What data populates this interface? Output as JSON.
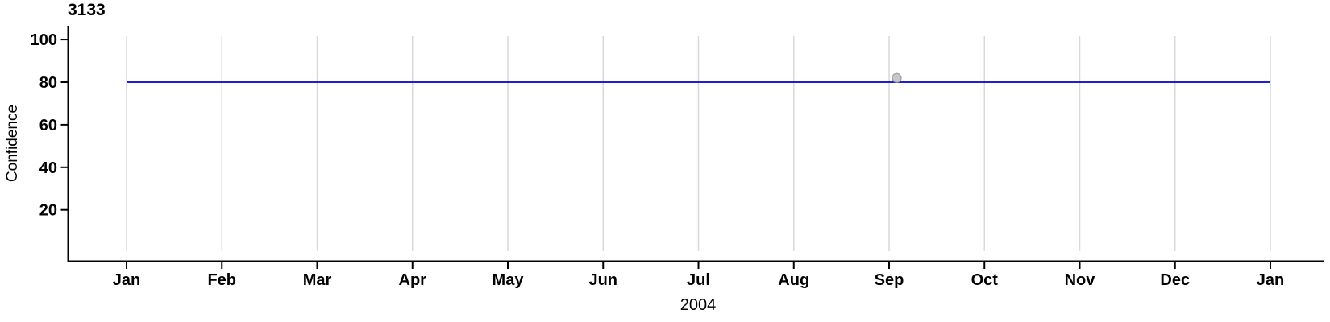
{
  "chart": {
    "title": "3133",
    "ylabel": "Confidence",
    "xlabel": "2004"
  },
  "chart_data": {
    "type": "line",
    "title": "3133",
    "xlabel": "2004",
    "ylabel": "Confidence",
    "x_tick_labels": [
      "Jan",
      "Feb",
      "Mar",
      "Apr",
      "May",
      "Jun",
      "Jul",
      "Aug",
      "Sep",
      "Oct",
      "Nov",
      "Dec",
      "Jan"
    ],
    "y_ticks": [
      20,
      40,
      60,
      80,
      100
    ],
    "ylim": [
      0,
      101.5
    ],
    "xlim_month_index": [
      0,
      12
    ],
    "grid": "vertical-gridline-at-each-month",
    "legend_position": "none",
    "series": [
      {
        "name": "confidence-line",
        "kind": "line",
        "color": "#0000C8",
        "x_month_index": [
          0,
          12
        ],
        "values": [
          80,
          80
        ]
      },
      {
        "name": "observation-point",
        "kind": "scatter",
        "fill": "#C8C8CC",
        "stroke": "#9E9EA4",
        "x_month_index": [
          8.08
        ],
        "values": [
          82
        ]
      }
    ]
  },
  "colors": {
    "background": "#FFFFFF",
    "axis": "#000000",
    "grid": "#D9D9D9",
    "text": "#000000",
    "line": "#0000C8",
    "point_fill": "#C8C8CC",
    "point_stroke": "#9E9EA4"
  }
}
